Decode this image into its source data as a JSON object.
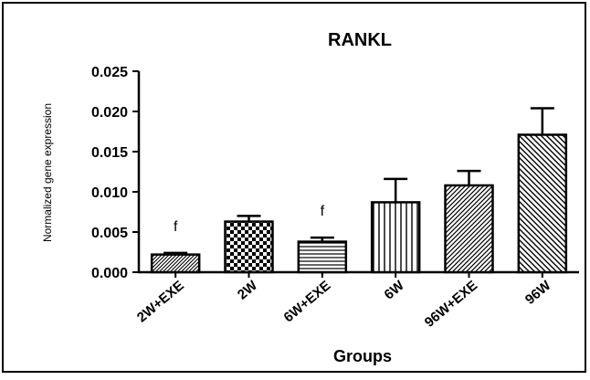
{
  "chart_data": {
    "type": "bar",
    "title": "RANKL",
    "xlabel": "Groups",
    "ylabel": "Normalized gene expression",
    "ylim": [
      0,
      0.025
    ],
    "yticks": [
      "0.000",
      "0.005",
      "0.010",
      "0.015",
      "0.020",
      "0.025"
    ],
    "categories": [
      "2W+EXE",
      "2W",
      "6W+EXE",
      "6W",
      "96W+EXE",
      "96W"
    ],
    "values": [
      0.0022,
      0.0063,
      0.0038,
      0.0087,
      0.0108,
      0.0171
    ],
    "error": [
      0.0002,
      0.0007,
      0.0005,
      0.0029,
      0.0018,
      0.0033
    ],
    "patterns": [
      "dense-diagonal",
      "checkerboard",
      "horizontal-lines",
      "vertical-lines",
      "diagonal-lines",
      "wide-diagonal"
    ],
    "annotations": [
      "f",
      "",
      "f",
      "",
      "",
      ""
    ],
    "grid": false,
    "legend": "none"
  }
}
